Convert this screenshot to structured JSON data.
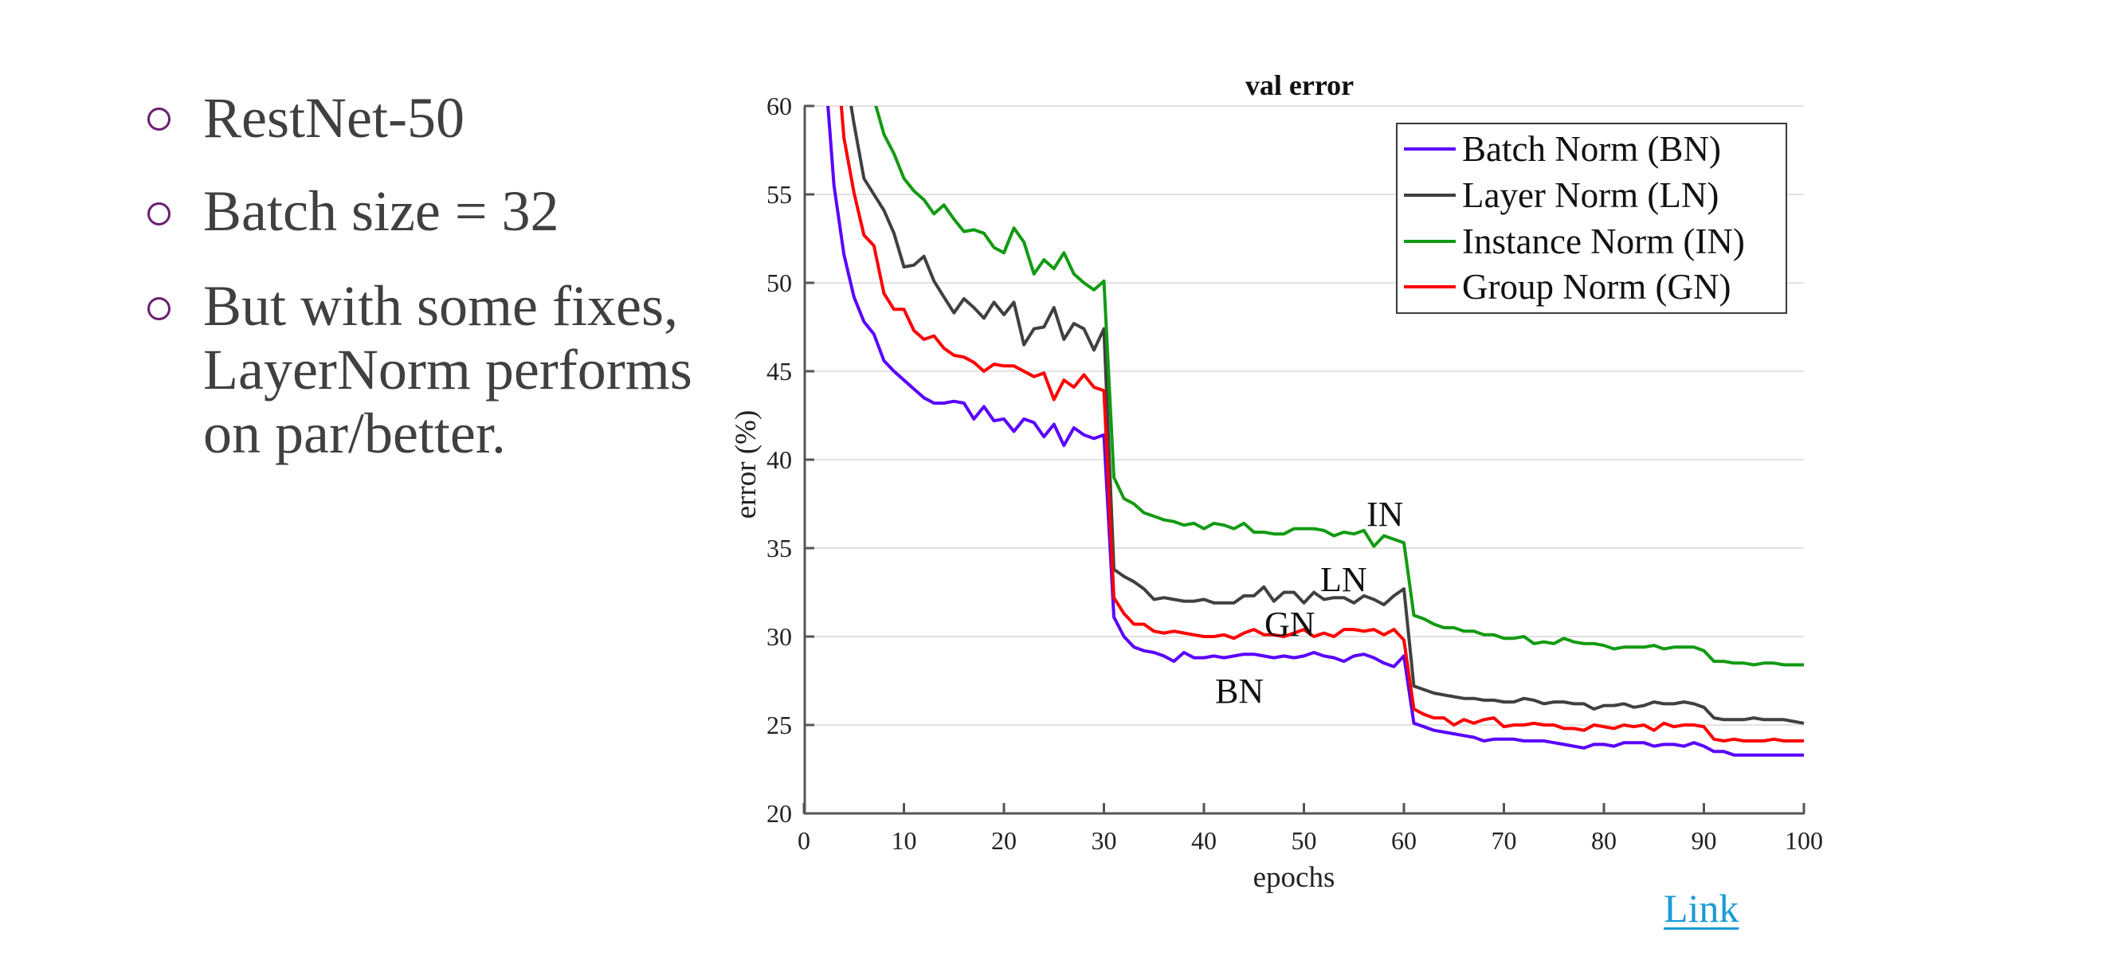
{
  "slide": {
    "bullets": [
      {
        "lines": [
          "RestNet-50"
        ]
      },
      {
        "lines": [
          "Batch size = 32"
        ]
      },
      {
        "lines": [
          "But with some fixes,",
          "LayerNorm performs",
          "on par/better."
        ]
      }
    ],
    "bullet_icon": "hollow-circle-bullet",
    "bullet_color": "#6b1f70",
    "text_color": "#404040",
    "link": {
      "label": "Link",
      "color": "#1a9ad6"
    }
  },
  "chart_data": {
    "type": "line",
    "title": "val error",
    "xlabel": "epochs",
    "ylabel": "error (%)",
    "xlim": [
      0,
      100
    ],
    "ylim": [
      20,
      60
    ],
    "xticks": [
      0,
      10,
      20,
      30,
      40,
      50,
      60,
      70,
      80,
      90,
      100
    ],
    "yticks": [
      20,
      25,
      30,
      35,
      40,
      45,
      50,
      55,
      60
    ],
    "grid": "horizontal",
    "legend_position": "top-right",
    "series": [
      {
        "name": "Batch Norm (BN)",
        "short": "BN",
        "color": "#5a00ff",
        "start_epoch": 2,
        "values": [
          63,
          55.5,
          51.6,
          49.2,
          47.8,
          47.1,
          45.6,
          45.0,
          44.5,
          44.0,
          43.5,
          43.2,
          43.2,
          43.3,
          43.2,
          42.3,
          43.0,
          42.2,
          42.3,
          41.6,
          42.3,
          42.1,
          41.3,
          42.0,
          40.8,
          41.8,
          41.4,
          41.2,
          41.4,
          31.1,
          30.0,
          29.4,
          29.2,
          29.1,
          28.9,
          28.6,
          29.1,
          28.8,
          28.8,
          28.9,
          28.8,
          28.9,
          29.0,
          29.0,
          28.9,
          28.8,
          28.9,
          28.8,
          28.9,
          29.1,
          28.9,
          28.8,
          28.6,
          28.9,
          29.0,
          28.8,
          28.5,
          28.3,
          28.9,
          25.1,
          24.9,
          24.7,
          24.6,
          24.5,
          24.4,
          24.3,
          24.1,
          24.2,
          24.2,
          24.2,
          24.1,
          24.1,
          24.1,
          24.0,
          23.9,
          23.8,
          23.7,
          23.9,
          23.9,
          23.8,
          24.0,
          24.0,
          24.0,
          23.8,
          23.9,
          23.9,
          23.8,
          24.0,
          23.8,
          23.5,
          23.5,
          23.3,
          23.3,
          23.3,
          23.3,
          23.3,
          23.3,
          23.3,
          23.3
        ]
      },
      {
        "name": "Layer Norm (LN)",
        "short": "LN",
        "color": "#404040",
        "start_epoch": 4,
        "values": [
          62.5,
          59.0,
          55.9,
          55.0,
          54.1,
          52.8,
          50.9,
          51.0,
          51.5,
          50.1,
          49.2,
          48.3,
          49.1,
          48.6,
          48.0,
          48.9,
          48.2,
          48.9,
          46.5,
          47.4,
          47.5,
          48.6,
          46.8,
          47.7,
          47.4,
          46.2,
          47.4,
          33.8,
          33.4,
          33.1,
          32.7,
          32.1,
          32.2,
          32.1,
          32.0,
          32.0,
          32.1,
          31.9,
          31.9,
          31.9,
          32.3,
          32.3,
          32.8,
          32.0,
          32.5,
          32.5,
          31.9,
          32.5,
          32.1,
          32.2,
          32.2,
          31.9,
          32.3,
          32.1,
          31.8,
          32.3,
          32.7,
          27.2,
          27.0,
          26.8,
          26.7,
          26.6,
          26.5,
          26.5,
          26.4,
          26.4,
          26.3,
          26.3,
          26.5,
          26.4,
          26.2,
          26.3,
          26.3,
          26.2,
          26.2,
          25.9,
          26.1,
          26.1,
          26.2,
          26.0,
          26.1,
          26.3,
          26.2,
          26.2,
          26.3,
          26.2,
          26.0,
          25.4,
          25.3,
          25.3,
          25.3,
          25.4,
          25.3,
          25.3,
          25.3,
          25.2,
          25.1
        ]
      },
      {
        "name": "Instance Norm (IN)",
        "short": "IN",
        "color": "#129a12",
        "start_epoch": 6,
        "values": [
          63,
          60.4,
          58.4,
          57.3,
          55.9,
          55.2,
          54.7,
          53.9,
          54.4,
          53.6,
          52.9,
          53.0,
          52.8,
          52.0,
          51.7,
          53.1,
          52.3,
          50.5,
          51.3,
          50.8,
          51.7,
          50.5,
          50.0,
          49.6,
          50.1,
          39.0,
          37.8,
          37.5,
          37.0,
          36.8,
          36.6,
          36.5,
          36.3,
          36.4,
          36.1,
          36.4,
          36.3,
          36.1,
          36.4,
          35.9,
          35.9,
          35.8,
          35.8,
          36.1,
          36.1,
          36.1,
          36.0,
          35.7,
          35.9,
          35.8,
          36.0,
          35.1,
          35.7,
          35.5,
          35.3,
          31.2,
          31.0,
          30.7,
          30.5,
          30.5,
          30.3,
          30.3,
          30.1,
          30.1,
          29.9,
          29.9,
          30.0,
          29.6,
          29.7,
          29.6,
          29.9,
          29.7,
          29.6,
          29.6,
          29.5,
          29.3,
          29.4,
          29.4,
          29.4,
          29.5,
          29.3,
          29.4,
          29.4,
          29.4,
          29.2,
          28.6,
          28.6,
          28.5,
          28.5,
          28.4,
          28.5,
          28.5,
          28.4,
          28.4,
          28.4
        ]
      },
      {
        "name": "Group Norm (GN)",
        "short": "GN",
        "color": "#ff0000",
        "start_epoch": 3,
        "values": [
          65,
          58.2,
          55.1,
          52.7,
          52.1,
          49.4,
          48.5,
          48.5,
          47.3,
          46.8,
          47.0,
          46.3,
          45.9,
          45.8,
          45.5,
          45.0,
          45.4,
          45.3,
          45.3,
          45.0,
          44.7,
          44.9,
          43.4,
          44.5,
          44.1,
          44.8,
          44.1,
          43.9,
          32.2,
          31.3,
          30.7,
          30.7,
          30.3,
          30.2,
          30.3,
          30.2,
          30.1,
          30.0,
          30.0,
          30.1,
          29.9,
          30.2,
          30.4,
          30.1,
          30.1,
          30.0,
          30.2,
          30.4,
          30.0,
          30.2,
          30.0,
          30.4,
          30.4,
          30.3,
          30.4,
          30.1,
          30.4,
          29.8,
          25.9,
          25.6,
          25.4,
          25.4,
          25.0,
          25.3,
          25.1,
          25.3,
          25.4,
          24.9,
          25.0,
          25.0,
          25.1,
          25.0,
          25.0,
          24.8,
          24.8,
          24.7,
          25.0,
          24.9,
          24.8,
          25.0,
          24.9,
          25.0,
          24.7,
          25.1,
          24.9,
          25.0,
          25.0,
          24.9,
          24.2,
          24.1,
          24.2,
          24.1,
          24.1,
          24.1,
          24.2,
          24.1,
          24.1,
          24.1
        ]
      }
    ],
    "annotations": [
      {
        "text": "IN"
      },
      {
        "text": "LN"
      },
      {
        "text": "GN"
      },
      {
        "text": "BN"
      }
    ]
  }
}
